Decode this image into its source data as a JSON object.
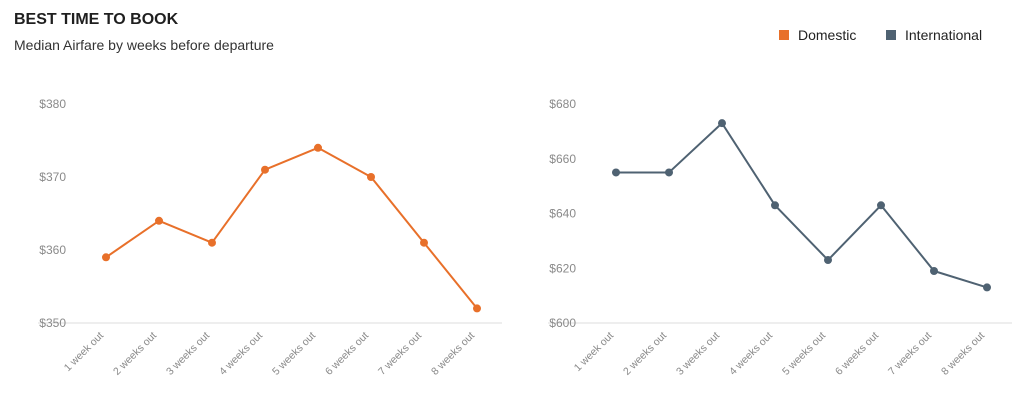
{
  "header": {
    "title": "BEST TIME TO BOOK",
    "subtitle": "Median Airfare by weeks before departure"
  },
  "legend": {
    "items": [
      {
        "label": "Domestic",
        "color": "#e8702a"
      },
      {
        "label": "International",
        "color": "#4f6272"
      }
    ]
  },
  "chart_data": [
    {
      "type": "line",
      "series": [
        {
          "name": "Domestic",
          "values": [
            359,
            364,
            361,
            371,
            374,
            370,
            361,
            352
          ]
        }
      ],
      "categories": [
        "1 week out",
        "2 weeks out",
        "3 weeks out",
        "4 weeks out",
        "5 weeks out",
        "6 weeks out",
        "7 weeks out",
        "8 weeks out"
      ],
      "ylim": [
        350,
        380
      ],
      "yticks": [
        350,
        360,
        370,
        380
      ],
      "ytick_labels": [
        "$350",
        "$360",
        "$370",
        "$380"
      ],
      "color": "#e8702a",
      "grid": false,
      "title": "",
      "xlabel": "",
      "ylabel": ""
    },
    {
      "type": "line",
      "series": [
        {
          "name": "International",
          "values": [
            655,
            655,
            673,
            643,
            623,
            643,
            619,
            613
          ]
        }
      ],
      "categories": [
        "1 week out",
        "2 weeks out",
        "3 weeks out",
        "4 weeks out",
        "5 weeks out",
        "6 weeks out",
        "7 weeks out",
        "8 weeks out"
      ],
      "ylim": [
        600,
        680
      ],
      "yticks": [
        600,
        620,
        640,
        660,
        680
      ],
      "ytick_labels": [
        "$600",
        "$620",
        "$640",
        "$660",
        "$680"
      ],
      "color": "#4f6272",
      "grid": false,
      "title": "",
      "xlabel": "",
      "ylabel": ""
    }
  ]
}
